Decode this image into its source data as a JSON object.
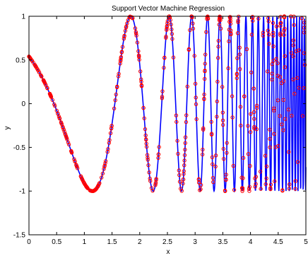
{
  "chart_data": {
    "type": "line",
    "title": "Support Vector Machine Regression",
    "xlabel": "x",
    "ylabel": "y",
    "xlim": [
      0,
      5
    ],
    "ylim": [
      -1.5,
      1
    ],
    "xticks": [
      "0",
      "0.5",
      "1",
      "1.5",
      "2",
      "2.5",
      "3",
      "3.5",
      "4",
      "4.5",
      "5"
    ],
    "yticks": [
      "1",
      "0.5",
      "0",
      "-0.5",
      "-1",
      "-1.5"
    ],
    "grid": false,
    "legend": "none",
    "function": "cos(exp(x))",
    "series": [
      {
        "style": "solid-line",
        "color": "#0000ff",
        "x_range": [
          0,
          5
        ],
        "y_min": -1,
        "y_max": 1
      },
      {
        "style": "circle-markers",
        "color": "#ff0000",
        "x_range": [
          0,
          5
        ],
        "approx_points": 500
      }
    ]
  }
}
